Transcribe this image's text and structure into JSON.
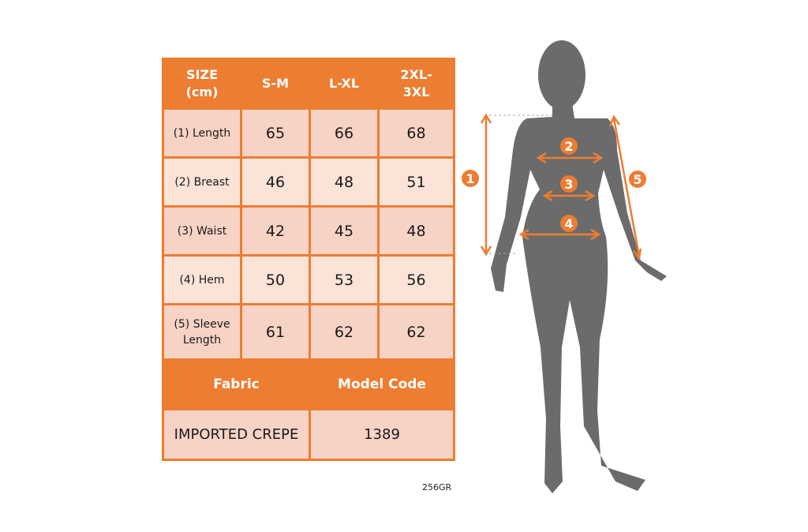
{
  "table": {
    "headers": [
      "SIZE\n(cm)",
      "S-M",
      "L-XL",
      "2XL-\n3XL"
    ],
    "rows": [
      {
        "label": "(1) Length",
        "values": [
          "65",
          "66",
          "68"
        ]
      },
      {
        "label": "(2) Breast",
        "values": [
          "46",
          "48",
          "51"
        ]
      },
      {
        "label": "(3) Waist",
        "values": [
          "42",
          "45",
          "48"
        ]
      },
      {
        "label": "(4) Hem",
        "values": [
          "50",
          "53",
          "56"
        ]
      },
      {
        "label": "(5) Sleeve Length",
        "values": [
          "61",
          "62",
          "62"
        ]
      }
    ],
    "footer_headers": [
      "Fabric",
      "Model Code"
    ],
    "footer_values": [
      "IMPORTED CREPE",
      "1389"
    ]
  },
  "product_code": "256GR",
  "figure": {
    "markers": [
      "1",
      "2",
      "3",
      "4",
      "5"
    ]
  },
  "colors": {
    "accent": "#ED7D31",
    "cell_dark": "#F7D3C5",
    "cell_light": "#FBE3D8",
    "silhouette": "#6B6B6B"
  }
}
